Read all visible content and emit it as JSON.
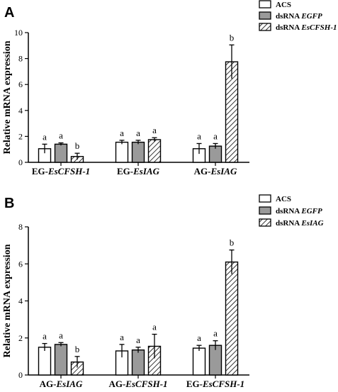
{
  "chart_data": [
    {
      "panel": "A",
      "type": "bar",
      "ylabel": "Relative mRNA expression",
      "ylim": [
        0,
        10
      ],
      "yticks": [
        0,
        2,
        4,
        6,
        8,
        10
      ],
      "categories": [
        {
          "prefix": "EG-",
          "italic": "EsCFSH-1"
        },
        {
          "prefix": "EG-",
          "italic": "EsIAG"
        },
        {
          "prefix": "AG-",
          "italic": "EsIAG"
        }
      ],
      "legend": [
        {
          "text": "ACS",
          "italic": ""
        },
        {
          "text": "dsRNA ",
          "italic": "EGFP"
        },
        {
          "text": "dsRNA ",
          "italic": "EsCFSH-1"
        }
      ],
      "series": [
        {
          "name": "ACS",
          "values": [
            1.05,
            1.55,
            1.05
          ],
          "errors": [
            0.35,
            0.15,
            0.4
          ],
          "labels": [
            "a",
            "a",
            "a"
          ]
        },
        {
          "name": "dsRNA EGFP",
          "values": [
            1.4,
            1.55,
            1.25
          ],
          "errors": [
            0.1,
            0.15,
            0.2
          ],
          "labels": [
            "a",
            "a",
            "a"
          ]
        },
        {
          "name": "dsRNA EsCFSH-1",
          "values": [
            0.45,
            1.75,
            7.75
          ],
          "errors": [
            0.25,
            0.15,
            1.3
          ],
          "labels": [
            "b",
            "a",
            "b"
          ]
        }
      ]
    },
    {
      "panel": "B",
      "type": "bar",
      "ylabel": "Relative mRNA expression",
      "ylim": [
        0,
        8
      ],
      "yticks": [
        0,
        2,
        4,
        6,
        8
      ],
      "categories": [
        {
          "prefix": "AG-",
          "italic": "EsIAG"
        },
        {
          "prefix": "AG-",
          "italic": "EsCFSH-1"
        },
        {
          "prefix": "EG-",
          "italic": "EsCFSH-1"
        }
      ],
      "legend": [
        {
          "text": "ACS",
          "italic": ""
        },
        {
          "text": "dsRNA ",
          "italic": "EGFP"
        },
        {
          "text": "dsRNA ",
          "italic": "EsIAG"
        }
      ],
      "series": [
        {
          "name": "ACS",
          "values": [
            1.5,
            1.3,
            1.45
          ],
          "errors": [
            0.2,
            0.35,
            0.15
          ],
          "labels": [
            "a",
            "a",
            "a"
          ]
        },
        {
          "name": "dsRNA EGFP",
          "values": [
            1.65,
            1.35,
            1.6
          ],
          "errors": [
            0.1,
            0.15,
            0.25
          ],
          "labels": [
            "a",
            "a",
            "a"
          ]
        },
        {
          "name": "dsRNA EsIAG",
          "values": [
            0.7,
            1.55,
            6.1
          ],
          "errors": [
            0.3,
            0.65,
            0.65
          ],
          "labels": [
            "b",
            "a",
            "b"
          ]
        }
      ]
    }
  ]
}
